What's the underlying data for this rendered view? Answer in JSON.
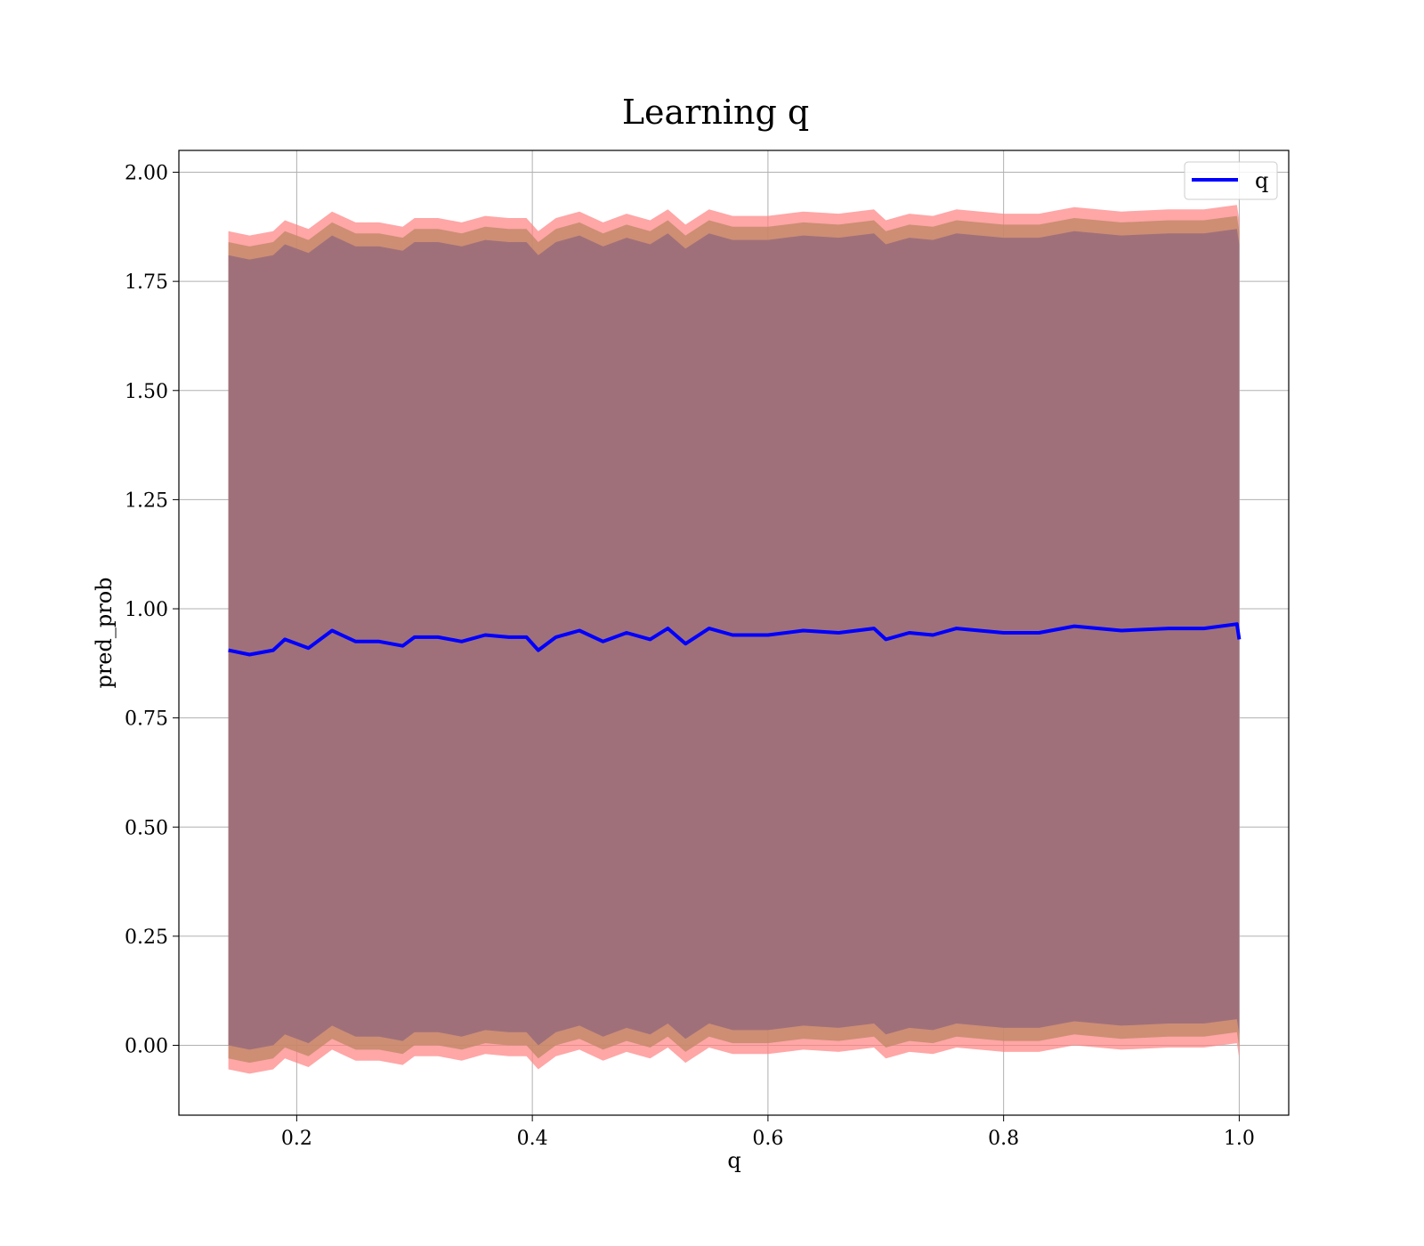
{
  "chart_data": {
    "type": "area",
    "title": "Learning q",
    "xlabel": "q",
    "ylabel": "pred_prob",
    "xlim": [
      0.1,
      1.042
    ],
    "ylim": [
      -0.16,
      2.05
    ],
    "grid": true,
    "legend": {
      "placement": "top-right",
      "entries": [
        "q"
      ]
    },
    "x_ticks": [
      {
        "value": 0.2,
        "label": "0.2"
      },
      {
        "value": 0.4,
        "label": "0.4"
      },
      {
        "value": 0.6,
        "label": "0.6"
      },
      {
        "value": 0.8,
        "label": "0.8"
      },
      {
        "value": 1.0,
        "label": "1.0"
      }
    ],
    "y_ticks": [
      {
        "value": 0.0,
        "label": "0.00"
      },
      {
        "value": 0.25,
        "label": "0.25"
      },
      {
        "value": 0.5,
        "label": "0.50"
      },
      {
        "value": 0.75,
        "label": "0.75"
      },
      {
        "value": 1.0,
        "label": "1.00"
      },
      {
        "value": 1.25,
        "label": "1.25"
      },
      {
        "value": 1.5,
        "label": "1.50"
      },
      {
        "value": 1.75,
        "label": "1.75"
      },
      {
        "value": 2.0,
        "label": "2.00"
      }
    ],
    "x": [
      0.142,
      0.16,
      0.18,
      0.19,
      0.21,
      0.23,
      0.25,
      0.27,
      0.29,
      0.3,
      0.32,
      0.34,
      0.36,
      0.38,
      0.395,
      0.405,
      0.42,
      0.44,
      0.46,
      0.48,
      0.5,
      0.515,
      0.53,
      0.55,
      0.57,
      0.6,
      0.63,
      0.66,
      0.69,
      0.7,
      0.72,
      0.74,
      0.76,
      0.8,
      0.83,
      0.86,
      0.9,
      0.94,
      0.97,
      0.998,
      1.0
    ],
    "series": [
      {
        "name": "q",
        "color": "#0000ff",
        "y": [
          0.905,
          0.895,
          0.905,
          0.93,
          0.91,
          0.95,
          0.925,
          0.925,
          0.915,
          0.935,
          0.935,
          0.925,
          0.94,
          0.935,
          0.935,
          0.905,
          0.935,
          0.95,
          0.925,
          0.945,
          0.93,
          0.955,
          0.92,
          0.955,
          0.94,
          0.94,
          0.95,
          0.945,
          0.955,
          0.93,
          0.945,
          0.94,
          0.955,
          0.945,
          0.945,
          0.96,
          0.95,
          0.955,
          0.955,
          0.965,
          0.93
        ],
        "bands": [
          {
            "color": "#ff8080",
            "opacity": 0.7,
            "lower_offset": -0.96,
            "upper_offset": 0.96
          },
          {
            "color": "#c08868",
            "opacity": 0.8,
            "lower_offset": -0.935,
            "upper_offset": 0.935
          },
          {
            "color": "#a0707a",
            "opacity": 1.0,
            "lower_offset": -0.905,
            "upper_offset": 0.905
          }
        ]
      }
    ]
  }
}
